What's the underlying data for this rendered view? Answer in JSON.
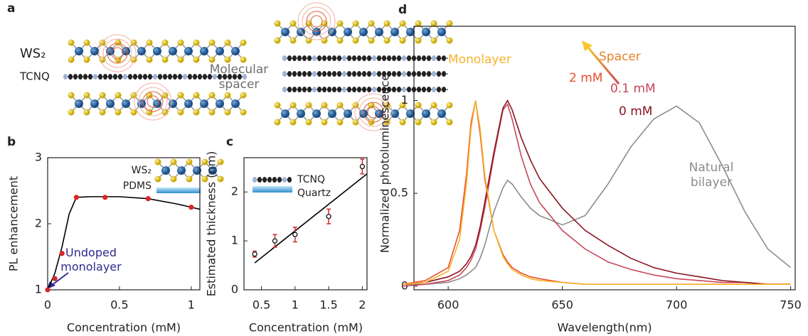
{
  "schematic": {
    "panel": "a",
    "labels": [
      "WS₂",
      "TCNQ",
      "Molecular spacer"
    ]
  },
  "chart_data": [
    {
      "type": "scatter",
      "panel": "b",
      "xlabel": "Concentration (mM)",
      "ylabel": "PL enhancement",
      "x": [
        0,
        0.05,
        0.1,
        0.2,
        0.4,
        0.7,
        1.0
      ],
      "values": [
        1,
        1.17,
        1.55,
        2.4,
        2.4,
        2.38,
        2.25
      ],
      "color": "#d62728",
      "fit": {
        "x": [
          0,
          0.05,
          0.1,
          0.15,
          0.2,
          0.3,
          0.5,
          0.7,
          0.9,
          1.0,
          1.06
        ],
        "values": [
          1,
          1.25,
          1.65,
          2.15,
          2.4,
          2.41,
          2.41,
          2.38,
          2.3,
          2.25,
          2.22
        ]
      },
      "xlim": [
        0,
        1.06
      ],
      "ylim": [
        1,
        3
      ],
      "xticks": [
        0,
        0.5,
        1
      ],
      "yticks": [
        1,
        2,
        3
      ],
      "annotation": "Undoped monolayer",
      "inset_labels": [
        "WS₂",
        "PDMS"
      ]
    },
    {
      "type": "scatter",
      "panel": "c",
      "xlabel": "Concentration (mM)",
      "ylabel": "Estimated thickness (nm)",
      "x": [
        0.4,
        0.7,
        1,
        1.5,
        2
      ],
      "values": [
        0.73,
        1.0,
        1.13,
        1.5,
        2.52
      ],
      "errors": [
        0.06,
        0.13,
        0.15,
        0.15,
        0.15
      ],
      "color": "#ffffff",
      "error_color": "#d62728",
      "fit": {
        "x": [
          0.4,
          2.07
        ],
        "values": [
          0.55,
          2.37
        ]
      },
      "xlim": [
        0.24,
        2.07
      ],
      "ylim": [
        0,
        2.7
      ],
      "xticks": [
        0.5,
        1,
        1.5,
        2
      ],
      "yticks": [
        0,
        1,
        2
      ],
      "inset_labels": [
        "TCNQ",
        "Quartz"
      ]
    },
    {
      "type": "line",
      "panel": "d",
      "xlabel": "Wavelength(nm)",
      "ylabel": "Normalized photoluminescence",
      "x": [
        580,
        590,
        600,
        605,
        608,
        610,
        612,
        614,
        616,
        620,
        624,
        626,
        628,
        632,
        636,
        640,
        650,
        660,
        670,
        680,
        690,
        700,
        710,
        720,
        730,
        740,
        750
      ],
      "series": [
        {
          "name": "Natural bilayer",
          "color": "#8c8c8c",
          "values": [
            0.01,
            0.01,
            0.02,
            0.04,
            0.06,
            0.08,
            0.1,
            0.15,
            0.22,
            0.4,
            0.53,
            0.57,
            0.55,
            0.48,
            0.42,
            0.38,
            0.33,
            0.38,
            0.55,
            0.75,
            0.9,
            0.97,
            0.88,
            0.65,
            0.4,
            0.2,
            0.1
          ]
        },
        {
          "name": "0.1 mM",
          "color": "#c8465a",
          "values": [
            0,
            0.01,
            0.03,
            0.06,
            0.1,
            0.14,
            0.2,
            0.3,
            0.42,
            0.7,
            0.95,
            0.98,
            0.9,
            0.7,
            0.55,
            0.45,
            0.3,
            0.2,
            0.13,
            0.09,
            0.06,
            0.04,
            0.03,
            0.02,
            0.02,
            0.01,
            0.01
          ]
        },
        {
          "name": "0 mM",
          "color": "#8b1520",
          "values": [
            0.01,
            0.02,
            0.05,
            0.08,
            0.12,
            0.16,
            0.22,
            0.32,
            0.45,
            0.72,
            0.96,
            1.0,
            0.95,
            0.8,
            0.68,
            0.58,
            0.42,
            0.3,
            0.22,
            0.15,
            0.1,
            0.07,
            0.05,
            0.03,
            0.02,
            0.01,
            0.01
          ]
        },
        {
          "name": "2 mM",
          "color": "#e8502a",
          "values": [
            0.01,
            0.03,
            0.1,
            0.3,
            0.6,
            0.88,
            1.0,
            0.82,
            0.58,
            0.3,
            0.17,
            0.13,
            0.1,
            0.07,
            0.05,
            0.04,
            0.02,
            0.01,
            0.01,
            0.01,
            0.01,
            0.01,
            0.01,
            0.01,
            0.01,
            0.01,
            0.01
          ]
        },
        {
          "name": "Monolayer",
          "color": "#f7b32b",
          "values": [
            0.01,
            0.02,
            0.08,
            0.25,
            0.55,
            0.85,
            1.0,
            0.85,
            0.6,
            0.3,
            0.16,
            0.12,
            0.09,
            0.06,
            0.04,
            0.03,
            0.02,
            0.01,
            0.01,
            0.01,
            0.01,
            0.01,
            0.01,
            0.01,
            0.01,
            0.01,
            0.01
          ]
        }
      ],
      "xlim": [
        585,
        752
      ],
      "ylim": [
        -0.02,
        1.4
      ],
      "xticks": [
        600,
        650,
        700,
        750
      ],
      "yticks": [
        0,
        0.5,
        1
      ],
      "arrow_label": "Spacer"
    }
  ]
}
